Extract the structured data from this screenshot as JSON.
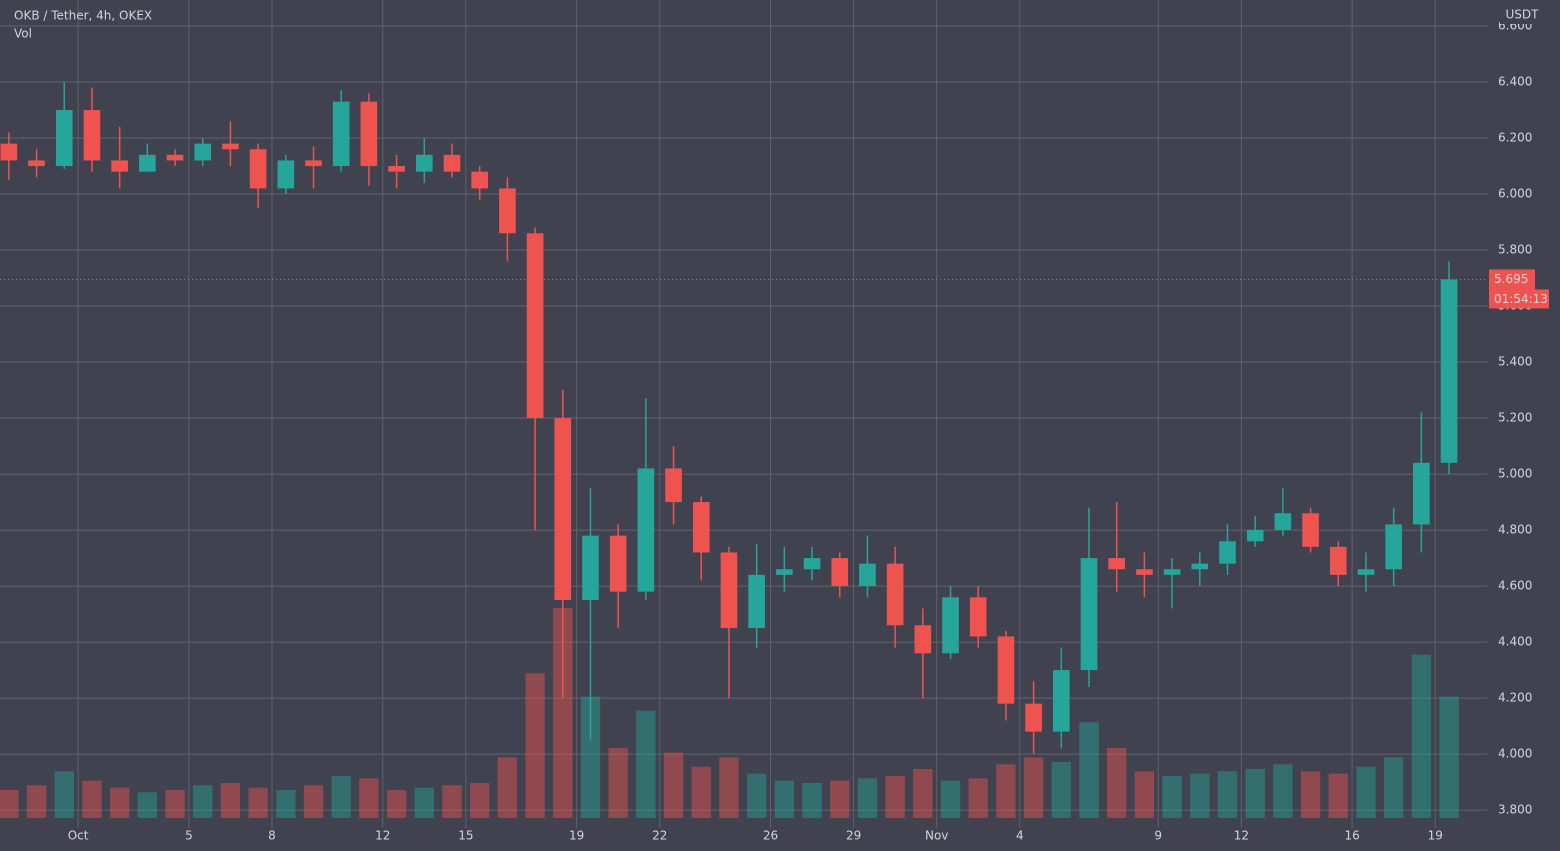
{
  "header": {
    "symbol": "OKB / Tether, 4h, OKEX",
    "volume_label": "Vol",
    "currency": "USDT"
  },
  "chart_data": {
    "type": "candlestick",
    "x": [
      -3,
      -2,
      -1,
      0,
      1,
      2,
      3,
      4,
      5,
      6,
      7,
      8,
      9,
      10,
      11,
      12,
      13,
      14,
      15,
      16,
      17,
      18,
      19,
      20,
      21,
      22,
      23,
      24,
      25,
      26,
      27,
      28,
      29,
      30,
      31,
      32,
      33,
      34,
      35,
      36,
      37,
      38,
      39,
      40,
      41,
      42,
      43,
      44,
      45,
      46,
      47,
      48,
      49
    ],
    "open": [
      6.18,
      6.12,
      6.1,
      6.3,
      6.12,
      6.08,
      6.14,
      6.12,
      6.18,
      6.16,
      6.02,
      6.12,
      6.1,
      6.33,
      6.1,
      6.08,
      6.14,
      6.08,
      6.02,
      5.86,
      5.2,
      4.55,
      4.78,
      4.58,
      5.02,
      4.9,
      4.72,
      4.45,
      4.64,
      4.66,
      4.7,
      4.6,
      4.68,
      4.46,
      4.36,
      4.56,
      4.42,
      4.18,
      4.08,
      4.3,
      4.7,
      4.66,
      4.64,
      4.66,
      4.68,
      4.76,
      4.8,
      4.86,
      4.74,
      4.64,
      4.66,
      4.82,
      5.04
    ],
    "high": [
      6.22,
      6.16,
      6.4,
      6.38,
      6.24,
      6.18,
      6.16,
      6.2,
      6.26,
      6.18,
      6.14,
      6.17,
      6.37,
      6.36,
      6.14,
      6.2,
      6.18,
      6.1,
      6.06,
      5.88,
      5.3,
      4.95,
      4.82,
      5.27,
      5.1,
      4.92,
      4.74,
      4.75,
      4.74,
      4.74,
      4.72,
      4.78,
      4.74,
      4.52,
      4.6,
      4.6,
      4.44,
      4.26,
      4.38,
      4.88,
      4.9,
      4.72,
      4.7,
      4.72,
      4.82,
      4.85,
      4.95,
      4.88,
      4.76,
      4.72,
      4.88,
      5.22,
      5.76
    ],
    "low": [
      6.05,
      6.06,
      6.09,
      6.08,
      6.02,
      6.08,
      6.1,
      6.1,
      6.1,
      5.95,
      6.0,
      6.02,
      6.08,
      6.03,
      6.02,
      6.04,
      6.06,
      5.98,
      5.76,
      4.8,
      4.2,
      4.05,
      4.45,
      4.55,
      4.82,
      4.62,
      4.2,
      4.38,
      4.58,
      4.62,
      4.56,
      4.56,
      4.38,
      4.2,
      4.34,
      4.38,
      4.12,
      4.0,
      4.02,
      4.24,
      4.58,
      4.56,
      4.52,
      4.6,
      4.64,
      4.74,
      4.78,
      4.72,
      4.6,
      4.58,
      4.6,
      4.72,
      5.0
    ],
    "close": [
      6.12,
      6.1,
      6.3,
      6.12,
      6.08,
      6.14,
      6.12,
      6.18,
      6.16,
      6.02,
      6.12,
      6.1,
      6.33,
      6.1,
      6.08,
      6.14,
      6.08,
      6.02,
      5.86,
      5.2,
      4.55,
      4.78,
      4.58,
      5.02,
      4.9,
      4.72,
      4.45,
      4.64,
      4.66,
      4.7,
      4.6,
      4.68,
      4.46,
      4.36,
      4.56,
      4.42,
      4.18,
      4.08,
      4.3,
      4.7,
      4.66,
      4.64,
      4.66,
      4.68,
      4.76,
      4.8,
      4.86,
      4.74,
      4.64,
      4.66,
      4.82,
      5.04,
      5.695
    ],
    "volume": [
      120,
      140,
      200,
      160,
      130,
      110,
      120,
      140,
      150,
      130,
      120,
      140,
      180,
      170,
      120,
      130,
      140,
      150,
      260,
      620,
      900,
      520,
      300,
      460,
      280,
      220,
      260,
      190,
      160,
      150,
      160,
      170,
      180,
      210,
      160,
      170,
      230,
      260,
      240,
      410,
      300,
      200,
      180,
      190,
      200,
      210,
      230,
      200,
      190,
      220,
      260,
      700,
      520
    ],
    "up_color": "#26a69a",
    "down_color": "#ef5350",
    "xlim": [
      -2.82,
      50.87
    ],
    "xticks": [
      {
        "value": 0,
        "label": "Oct"
      },
      {
        "value": 4,
        "label": "5"
      },
      {
        "value": 7,
        "label": "8"
      },
      {
        "value": 11,
        "label": "12"
      },
      {
        "value": 14,
        "label": "15"
      },
      {
        "value": 18,
        "label": "19"
      },
      {
        "value": 21,
        "label": "22"
      },
      {
        "value": 25,
        "label": "26"
      },
      {
        "value": 28,
        "label": "29"
      },
      {
        "value": 31,
        "label": "Nov"
      },
      {
        "value": 34,
        "label": "4"
      },
      {
        "value": 39,
        "label": "9"
      },
      {
        "value": 42,
        "label": "12"
      },
      {
        "value": 46,
        "label": "16"
      },
      {
        "value": 49,
        "label": "19"
      }
    ],
    "ylim": [
      3.736,
      6.693
    ],
    "yticks": [
      {
        "value": 6.6,
        "label": "6.600"
      },
      {
        "value": 6.4,
        "label": "6.400"
      },
      {
        "value": 6.2,
        "label": "6.200"
      },
      {
        "value": 6.0,
        "label": "6.000"
      },
      {
        "value": 5.8,
        "label": "5.800"
      },
      {
        "value": 5.6,
        "label": "5.600"
      },
      {
        "value": 5.4,
        "label": "5.400"
      },
      {
        "value": 5.2,
        "label": "5.200"
      },
      {
        "value": 5.0,
        "label": "5.000"
      },
      {
        "value": 4.8,
        "label": "4.800"
      },
      {
        "value": 4.6,
        "label": "4.600"
      },
      {
        "value": 4.4,
        "label": "4.400"
      },
      {
        "value": 4.2,
        "label": "4.200"
      },
      {
        "value": 4.0,
        "label": "4.000"
      },
      {
        "value": 3.8,
        "label": "3.800"
      }
    ],
    "grid": true,
    "last_price": 5.695,
    "countdown": "01:54:13"
  }
}
